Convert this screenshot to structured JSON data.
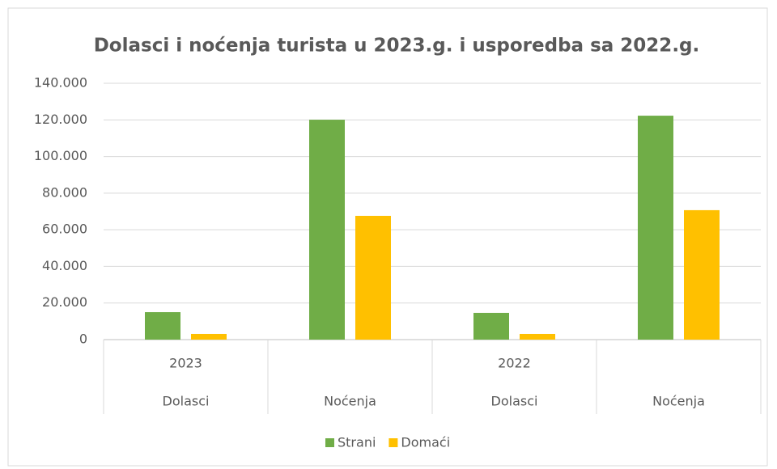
{
  "chart_data": {
    "type": "bar",
    "title": "Dolasci i noćenja turista u 2023.g. i usporedba sa 2022.g.",
    "categories": [
      "Dolasci",
      "Noćenja",
      "Dolasci",
      "Noćenja"
    ],
    "category_groups": [
      "2023",
      null,
      "2022",
      null
    ],
    "series": [
      {
        "name": "Strani",
        "color": "#70ad47",
        "values": [
          15000,
          120100,
          14600,
          122300
        ]
      },
      {
        "name": "Domaći",
        "color": "#ffc000",
        "values": [
          3100,
          67600,
          3100,
          70700
        ]
      }
    ],
    "ylim": [
      0,
      140000
    ],
    "yticks": [
      0,
      {
        "value": 20000,
        "label": "20.000"
      },
      {
        "value": 40000,
        "label": "40.000"
      },
      {
        "value": 60000,
        "label": "60.000"
      },
      {
        "value": 80000,
        "label": "80.000"
      },
      {
        "value": 100000,
        "label": "100.000"
      },
      {
        "value": 120000,
        "label": "120.000"
      },
      {
        "value": 140000,
        "label": "140.000"
      }
    ],
    "grid": true,
    "legend": "bottom"
  }
}
